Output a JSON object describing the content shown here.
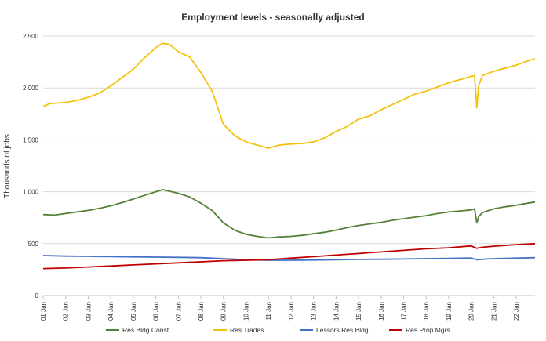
{
  "chart_data": {
    "type": "line",
    "title": "Employment levels - seasonally adjusted",
    "xlabel": "",
    "ylabel": "Thousands of jobs",
    "ylim": [
      0,
      2500
    ],
    "xlim": [
      2001.0,
      2022.833
    ],
    "yticks": [
      0,
      500,
      1000,
      1500,
      2000,
      2500
    ],
    "ytick_labels": [
      "0",
      "500",
      "1,000",
      "1,500",
      "2,000",
      "2,500"
    ],
    "xticks": [
      2001,
      2002,
      2003,
      2004,
      2005,
      2006,
      2007,
      2008,
      2009,
      2010,
      2011,
      2012,
      2013,
      2014,
      2015,
      2016,
      2017,
      2018,
      2019,
      2020,
      2021,
      2022
    ],
    "xtick_labels": [
      "01 Jan",
      "02 Jan",
      "03 Jan",
      "04 Jan",
      "05 Jan",
      "06 Jan",
      "07 Jan",
      "08 Jan",
      "09 Jan",
      "10 Jan",
      "11 Jan",
      "12 Jan",
      "13 Jan",
      "14 Jan",
      "15 Jan",
      "16 Jan",
      "17 Jan",
      "18 Jan",
      "19 Jan",
      "20 Jan",
      "21 Jan",
      "22 Jan"
    ],
    "grid": "horizontal",
    "legend_position": "bottom",
    "series": [
      {
        "name": "Res Bldg Const",
        "color": "#538135",
        "x": [
          2001.0,
          2001.5,
          2002.0,
          2002.5,
          2003.0,
          2003.5,
          2004.0,
          2004.5,
          2005.0,
          2005.5,
          2006.0,
          2006.3,
          2006.6,
          2007.0,
          2007.5,
          2008.0,
          2008.5,
          2009.0,
          2009.5,
          2010.0,
          2010.5,
          2011.0,
          2011.5,
          2012.0,
          2012.5,
          2013.0,
          2013.5,
          2014.0,
          2014.5,
          2015.0,
          2015.5,
          2016.0,
          2016.5,
          2017.0,
          2017.5,
          2018.0,
          2018.5,
          2019.0,
          2019.5,
          2020.0,
          2020.15,
          2020.25,
          2020.33,
          2020.5,
          2021.0,
          2021.5,
          2022.0,
          2022.5,
          2022.833
        ],
        "y": [
          780,
          775,
          790,
          805,
          820,
          840,
          865,
          895,
          930,
          965,
          1000,
          1020,
          1005,
          985,
          950,
          890,
          820,
          700,
          630,
          590,
          570,
          555,
          565,
          570,
          580,
          595,
          610,
          630,
          655,
          675,
          690,
          705,
          725,
          740,
          755,
          770,
          790,
          805,
          815,
          825,
          835,
          700,
          760,
          800,
          835,
          855,
          870,
          890,
          900
        ]
      },
      {
        "name": "Res Trades",
        "color": "#f4c20d",
        "x": [
          2001.0,
          2001.3,
          2001.7,
          2002.0,
          2002.5,
          2003.0,
          2003.5,
          2004.0,
          2004.5,
          2005.0,
          2005.5,
          2006.0,
          2006.3,
          2006.6,
          2007.0,
          2007.5,
          2008.0,
          2008.5,
          2009.0,
          2009.5,
          2010.0,
          2010.5,
          2011.0,
          2011.5,
          2012.0,
          2012.5,
          2013.0,
          2013.5,
          2014.0,
          2014.5,
          2015.0,
          2015.5,
          2016.0,
          2016.5,
          2017.0,
          2017.5,
          2018.0,
          2018.5,
          2019.0,
          2019.5,
          2020.0,
          2020.15,
          2020.25,
          2020.33,
          2020.5,
          2021.0,
          2021.5,
          2022.0,
          2022.5,
          2022.833
        ],
        "y": [
          1820,
          1850,
          1855,
          1860,
          1880,
          1910,
          1950,
          2020,
          2100,
          2180,
          2290,
          2390,
          2430,
          2420,
          2350,
          2300,
          2150,
          1970,
          1650,
          1540,
          1480,
          1450,
          1420,
          1450,
          1460,
          1465,
          1480,
          1520,
          1580,
          1630,
          1700,
          1730,
          1790,
          1840,
          1890,
          1940,
          1970,
          2010,
          2050,
          2080,
          2110,
          2120,
          1810,
          2020,
          2120,
          2160,
          2190,
          2220,
          2260,
          2280
        ]
      },
      {
        "name": "Lessors Res Bldg",
        "color": "#4472c4",
        "x": [
          2001.0,
          2002.0,
          2003.0,
          2004.0,
          2005.0,
          2006.0,
          2007.0,
          2008.0,
          2009.0,
          2010.0,
          2011.0,
          2012.0,
          2013.0,
          2014.0,
          2015.0,
          2016.0,
          2017.0,
          2018.0,
          2019.0,
          2020.0,
          2020.25,
          2020.5,
          2021.0,
          2022.0,
          2022.833
        ],
        "y": [
          385,
          380,
          378,
          375,
          372,
          370,
          368,
          365,
          355,
          345,
          340,
          340,
          342,
          345,
          348,
          350,
          352,
          355,
          358,
          362,
          345,
          350,
          355,
          360,
          365
        ]
      },
      {
        "name": "Res Prop Mgrs",
        "color": "#c00000",
        "x": [
          2001.0,
          2002.0,
          2003.0,
          2004.0,
          2005.0,
          2006.0,
          2007.0,
          2008.0,
          2009.0,
          2010.0,
          2011.0,
          2012.0,
          2013.0,
          2014.0,
          2015.0,
          2016.0,
          2017.0,
          2018.0,
          2019.0,
          2020.0,
          2020.25,
          2020.5,
          2021.0,
          2022.0,
          2022.833
        ],
        "y": [
          260,
          265,
          275,
          285,
          295,
          305,
          315,
          325,
          335,
          340,
          345,
          360,
          375,
          390,
          405,
          420,
          435,
          450,
          460,
          478,
          455,
          465,
          475,
          490,
          500
        ]
      }
    ]
  }
}
